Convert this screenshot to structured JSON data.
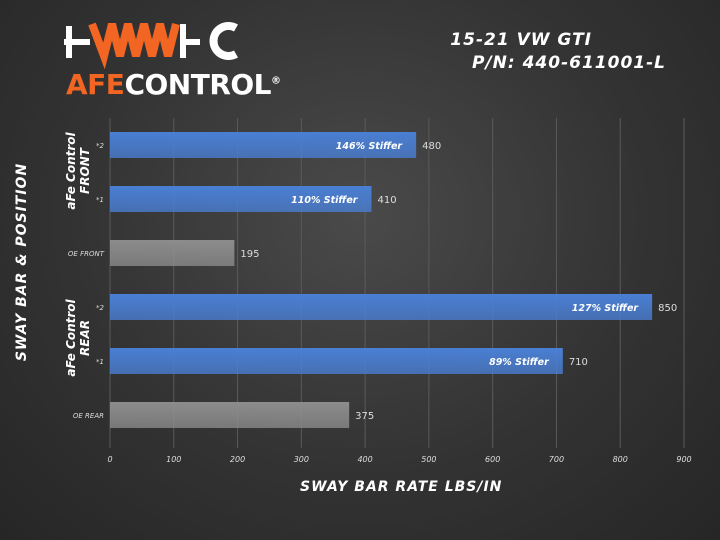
{
  "header": {
    "vehicle": "15-21 VW GTI",
    "part_number": "P/N: 440-611001-L"
  },
  "logo": {
    "brand_afe": "AFE",
    "brand_control": "CONTROL",
    "registered_mark": "®"
  },
  "groups": [
    {
      "label_line1": "aFe Control",
      "label_line2": "FRONT"
    },
    {
      "label_line1": "aFe Control",
      "label_line2": "REAR"
    }
  ],
  "chart_data": {
    "type": "bar",
    "orientation": "horizontal",
    "title": "",
    "xlabel": "SWAY BAR RATE LBS/IN",
    "ylabel": "SWAY BAR & POSITION",
    "xlim": [
      0,
      900
    ],
    "xticks": [
      0,
      100,
      200,
      300,
      400,
      500,
      600,
      700,
      800,
      900
    ],
    "grid": "vertical",
    "categories": [
      "*2",
      "*1",
      "OE FRONT",
      "*2",
      "*1",
      "OE REAR"
    ],
    "values": [
      480,
      410,
      195,
      850,
      710,
      375
    ],
    "bar_colors": [
      "#4a7fd4",
      "#4a7fd4",
      "#8c8c8c",
      "#4a7fd4",
      "#4a7fd4",
      "#8c8c8c"
    ],
    "in_bar_labels": [
      "146% Stiffer",
      "110% Stiffer",
      "",
      "127% Stiffer",
      "89% Stiffer",
      ""
    ],
    "colors": {
      "afe_blue": "#4a7fd4",
      "oe_gray": "#8c8c8c",
      "brand_orange": "#f26522"
    }
  }
}
